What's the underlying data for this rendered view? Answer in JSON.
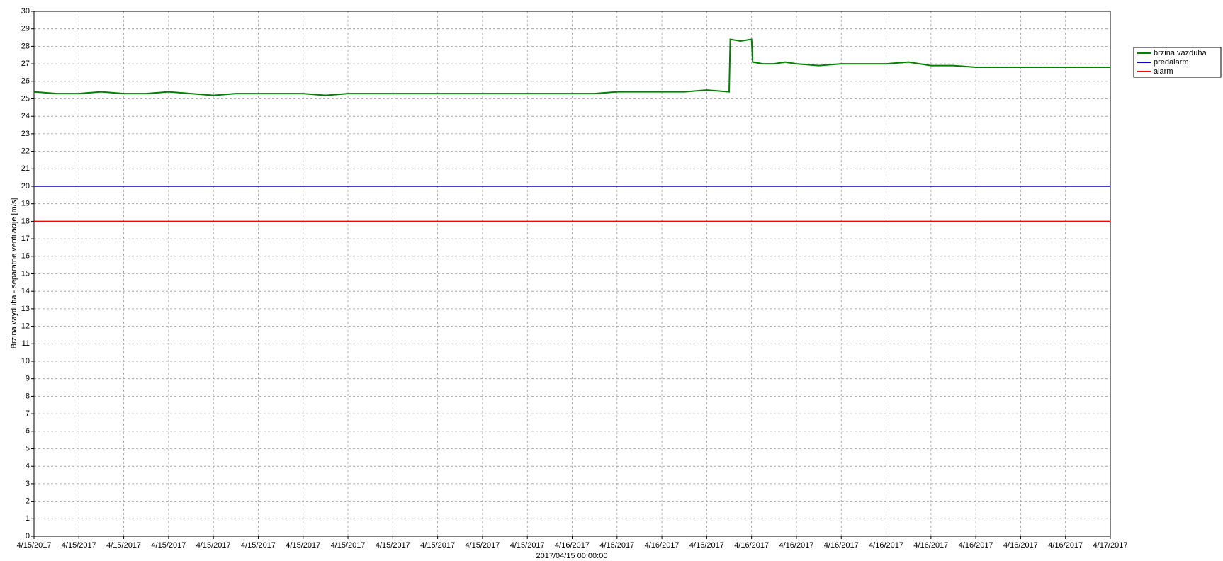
{
  "chart_data": {
    "type": "line",
    "ylabel": "Brzina vayduha - separatne ventilacije [m/s]",
    "xlabel": "2017/04/15 00:00:00",
    "xlim": [
      0,
      48
    ],
    "ylim": [
      0,
      30
    ],
    "yticks": [
      0,
      1,
      2,
      3,
      4,
      5,
      6,
      7,
      8,
      9,
      10,
      11,
      12,
      13,
      14,
      15,
      16,
      17,
      18,
      19,
      20,
      21,
      22,
      23,
      24,
      25,
      26,
      27,
      28,
      29,
      30
    ],
    "xticks": [
      {
        "value": 0,
        "label": "4/15/2017"
      },
      {
        "value": 2,
        "label": "4/15/2017"
      },
      {
        "value": 4,
        "label": "4/15/2017"
      },
      {
        "value": 6,
        "label": "4/15/2017"
      },
      {
        "value": 8,
        "label": "4/15/2017"
      },
      {
        "value": 10,
        "label": "4/15/2017"
      },
      {
        "value": 12,
        "label": "4/15/2017"
      },
      {
        "value": 14,
        "label": "4/15/2017"
      },
      {
        "value": 16,
        "label": "4/15/2017"
      },
      {
        "value": 18,
        "label": "4/15/2017"
      },
      {
        "value": 20,
        "label": "4/15/2017"
      },
      {
        "value": 22,
        "label": "4/15/2017"
      },
      {
        "value": 24,
        "label": "4/16/2017"
      },
      {
        "value": 26,
        "label": "4/16/2017"
      },
      {
        "value": 28,
        "label": "4/16/2017"
      },
      {
        "value": 30,
        "label": "4/16/2017"
      },
      {
        "value": 32,
        "label": "4/16/2017"
      },
      {
        "value": 34,
        "label": "4/16/2017"
      },
      {
        "value": 36,
        "label": "4/16/2017"
      },
      {
        "value": 38,
        "label": "4/16/2017"
      },
      {
        "value": 40,
        "label": "4/16/2017"
      },
      {
        "value": 42,
        "label": "4/16/2017"
      },
      {
        "value": 44,
        "label": "4/16/2017"
      },
      {
        "value": 46,
        "label": "4/16/2017"
      },
      {
        "value": 48,
        "label": "4/17/2017"
      }
    ],
    "grid": true,
    "legend": "outside-right",
    "series": [
      {
        "name": "brzina vazduha",
        "color": "#008000",
        "x": [
          0,
          1,
          2,
          3,
          4,
          5,
          6,
          7,
          8,
          9,
          10,
          11,
          12,
          13,
          14,
          15,
          16,
          17,
          18,
          19,
          20,
          21,
          22,
          23,
          24,
          25,
          26,
          27,
          28,
          29,
          30,
          31,
          31.05,
          31.5,
          32,
          32.05,
          32.5,
          33,
          33.5,
          34,
          35,
          36,
          37,
          38,
          39,
          40,
          41,
          42,
          43,
          44,
          45,
          46,
          47,
          48
        ],
        "values": [
          25.4,
          25.3,
          25.3,
          25.4,
          25.3,
          25.3,
          25.4,
          25.3,
          25.2,
          25.3,
          25.3,
          25.3,
          25.3,
          25.2,
          25.3,
          25.3,
          25.3,
          25.3,
          25.3,
          25.3,
          25.3,
          25.3,
          25.3,
          25.3,
          25.3,
          25.3,
          25.4,
          25.4,
          25.4,
          25.4,
          25.5,
          25.4,
          28.4,
          28.3,
          28.4,
          27.1,
          27.0,
          27.0,
          27.1,
          27.0,
          26.9,
          27.0,
          27.0,
          27.0,
          27.1,
          26.9,
          26.9,
          26.8,
          26.8,
          26.8,
          26.8,
          26.8,
          26.8,
          26.8
        ]
      },
      {
        "name": "predalarm",
        "color": "#0000cc",
        "x": [
          0,
          48
        ],
        "values": [
          20,
          20
        ]
      },
      {
        "name": "alarm",
        "color": "#ff0000",
        "x": [
          0,
          48
        ],
        "values": [
          18,
          18
        ]
      }
    ]
  }
}
